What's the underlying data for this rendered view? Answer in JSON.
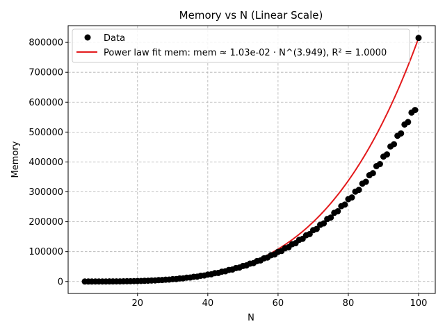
{
  "chart_data": {
    "type": "scatter",
    "title": "Memory vs N (Linear Scale)",
    "xlabel": "N",
    "ylabel": "Memory",
    "xlim": [
      0.25,
      104.75
    ],
    "ylim": [
      -40000,
      856000
    ],
    "x_ticks": [
      20,
      40,
      60,
      80,
      100
    ],
    "x_tick_labels": [
      "20",
      "40",
      "60",
      "80",
      "100"
    ],
    "y_ticks": [
      0,
      100000,
      200000,
      300000,
      400000,
      500000,
      600000,
      700000,
      800000
    ],
    "y_tick_labels": [
      "0",
      "100000",
      "200000",
      "300000",
      "400000",
      "500000",
      "600000",
      "700000",
      "800000"
    ],
    "grid": true,
    "legend_position": "top-left",
    "series": [
      {
        "name": "Data",
        "kind": "scatter",
        "color": "#000000",
        "x": [
          5,
          6,
          7,
          8,
          9,
          10,
          11,
          12,
          13,
          14,
          15,
          16,
          17,
          18,
          19,
          20,
          21,
          22,
          23,
          24,
          25,
          26,
          27,
          28,
          29,
          30,
          31,
          32,
          33,
          34,
          35,
          36,
          37,
          38,
          39,
          40,
          41,
          42,
          43,
          44,
          45,
          46,
          47,
          48,
          49,
          50,
          51,
          52,
          53,
          54,
          55,
          56,
          57,
          58,
          59,
          60,
          61,
          62,
          63,
          64,
          65,
          66,
          67,
          68,
          69,
          70,
          71,
          72,
          73,
          74,
          75,
          76,
          77,
          78,
          79,
          80,
          81,
          82,
          83,
          84,
          85,
          86,
          87,
          88,
          89,
          90,
          91,
          92,
          93,
          94,
          95,
          96,
          97,
          98,
          99,
          100
        ],
        "y": [
          6,
          14,
          23,
          41,
          61,
          98,
          139,
          201,
          257,
          373,
          450,
          664,
          781,
          1021,
          1207,
          1600,
          1772,
          2346,
          2652,
          3267,
          3657,
          4549,
          4848,
          6011,
          6434,
          7900,
          8221,
          10099,
          10577,
          12800,
          13243,
          15847,
          16312,
          19296,
          20074,
          23206,
          24199,
          27783,
          28658,
          32923,
          34182,
          38685,
          40035,
          44961,
          46713,
          51919,
          53920,
          59742,
          61646,
          68282,
          70521,
          77580,
          80138,
          87911,
          90531,
          99098,
          102152,
          111378,
          114543,
          124673,
          128180,
          139216,
          142788,
          154700,
          158763,
          171669,
          175893,
          189705,
          194364,
          209109,
          213939,
          229780,
          235024,
          252109,
          257371,
          275542,
          281265,
          300686,
          306641,
          327442,
          333646,
          355703,
          362460,
          385967,
          392903,
          417960,
          425209,
          451762,
          459375,
          487571,
          495464,
          525300,
          533548,
          565142,
          573704,
          815000
        ]
      },
      {
        "name": "Power law fit mem: mem ≈ 1.03e-02 · N^(3.949), R² = 1.0000",
        "kind": "line",
        "color": "#e31a1c",
        "coef": 0.0103,
        "exponent": 3.949
      }
    ]
  }
}
